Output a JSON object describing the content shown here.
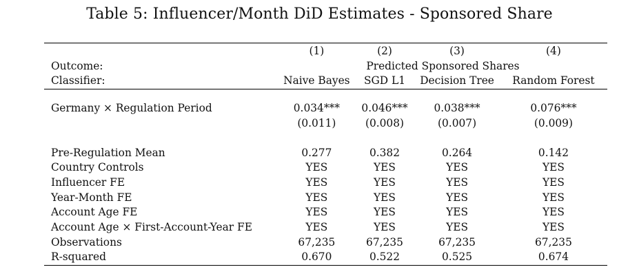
{
  "caption": "Table 5: Influencer/Month DiD Estimates - Sponsored Share",
  "columns": [
    "(1)",
    "(2)",
    "(3)",
    "(4)"
  ],
  "outcome_label": "Outcome:",
  "outcome_value": "Predicted Sponsored Shares",
  "classifier_label": "Classifier:",
  "classifiers": [
    "Naive Bayes",
    "SGD L1",
    "Decision Tree",
    "Random Forest"
  ],
  "main_effect": {
    "label": "Germany × Regulation Period",
    "estimates": [
      "0.034***",
      "0.046***",
      "0.038***",
      "0.076***"
    ],
    "std_errors": [
      "(0.011)",
      "(0.008)",
      "(0.007)",
      "(0.009)"
    ]
  },
  "rows": [
    {
      "label": "Pre-Regulation Mean",
      "values": [
        "0.277",
        "0.382",
        "0.264",
        "0.142"
      ]
    },
    {
      "label": "Country Controls",
      "values": [
        "YES",
        "YES",
        "YES",
        "YES"
      ]
    },
    {
      "label": "Influencer FE",
      "values": [
        "YES",
        "YES",
        "YES",
        "YES"
      ]
    },
    {
      "label": "Year-Month FE",
      "values": [
        "YES",
        "YES",
        "YES",
        "YES"
      ]
    },
    {
      "label": "Account Age FE",
      "values": [
        "YES",
        "YES",
        "YES",
        "YES"
      ]
    },
    {
      "label": "Account Age × First-Account-Year FE",
      "values": [
        "YES",
        "YES",
        "YES",
        "YES"
      ]
    },
    {
      "label": "Observations",
      "values": [
        "67,235",
        "67,235",
        "67,235",
        "67,235"
      ]
    },
    {
      "label": "R-squared",
      "values": [
        "0.670",
        "0.522",
        "0.525",
        "0.674"
      ]
    }
  ]
}
